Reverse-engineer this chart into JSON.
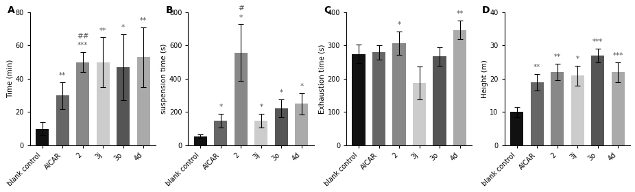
{
  "panels": [
    {
      "label": "A",
      "ylabel": "Time (min)",
      "ylim": [
        0,
        80
      ],
      "yticks": [
        0,
        20,
        40,
        60,
        80
      ],
      "categories": [
        "blank control",
        "AICAR",
        "2",
        "3j",
        "3o",
        "4d"
      ],
      "values": [
        10,
        30,
        50,
        50,
        47,
        53
      ],
      "errors": [
        4,
        8,
        6,
        15,
        20,
        18
      ],
      "colors": [
        "#111111",
        "#666666",
        "#888888",
        "#cccccc",
        "#555555",
        "#aaaaaa"
      ],
      "sig_labels": [
        "",
        "**",
        "##\n***",
        "**",
        "*",
        "**"
      ]
    },
    {
      "label": "B",
      "ylabel": "suspension time (s)",
      "ylim": [
        0,
        800
      ],
      "yticks": [
        0,
        200,
        400,
        600,
        800
      ],
      "categories": [
        "blank control",
        "AICAR",
        "2",
        "3j",
        "3o",
        "4d"
      ],
      "values": [
        55,
        148,
        558,
        148,
        222,
        250
      ],
      "errors": [
        12,
        40,
        170,
        40,
        55,
        65
      ],
      "colors": [
        "#111111",
        "#666666",
        "#888888",
        "#cccccc",
        "#555555",
        "#aaaaaa"
      ],
      "sig_labels": [
        "",
        "*",
        "#\n*",
        "*",
        "*",
        "*"
      ]
    },
    {
      "label": "C",
      "ylabel": "Exhaustion time (s)",
      "ylim": [
        0,
        400
      ],
      "yticks": [
        0,
        100,
        200,
        300,
        400
      ],
      "categories": [
        "blank control",
        "AICAR",
        "2",
        "3j",
        "3o",
        "4d"
      ],
      "values": [
        275,
        280,
        308,
        187,
        267,
        347
      ],
      "errors": [
        28,
        22,
        35,
        50,
        28,
        28
      ],
      "colors": [
        "#111111",
        "#666666",
        "#888888",
        "#cccccc",
        "#555555",
        "#aaaaaa"
      ],
      "sig_labels": [
        "",
        "",
        "*",
        "",
        "",
        "**"
      ]
    },
    {
      "label": "D",
      "ylabel": "Height (m)",
      "ylim": [
        0,
        40
      ],
      "yticks": [
        0,
        10,
        20,
        30,
        40
      ],
      "categories": [
        "blank control",
        "AICAR",
        "2",
        "3j",
        "3o",
        "4d"
      ],
      "values": [
        10,
        19,
        22,
        21,
        27,
        22
      ],
      "errors": [
        1.5,
        2.5,
        2.5,
        3.0,
        2.0,
        3.0
      ],
      "colors": [
        "#111111",
        "#666666",
        "#888888",
        "#cccccc",
        "#555555",
        "#aaaaaa"
      ],
      "sig_labels": [
        "",
        "**",
        "**",
        "*",
        "***",
        "***"
      ]
    }
  ],
  "bar_width": 0.65,
  "capsize": 3,
  "fontsize_label": 7.5,
  "fontsize_tick": 7,
  "fontsize_sig": 7.5,
  "fontsize_panel": 10
}
